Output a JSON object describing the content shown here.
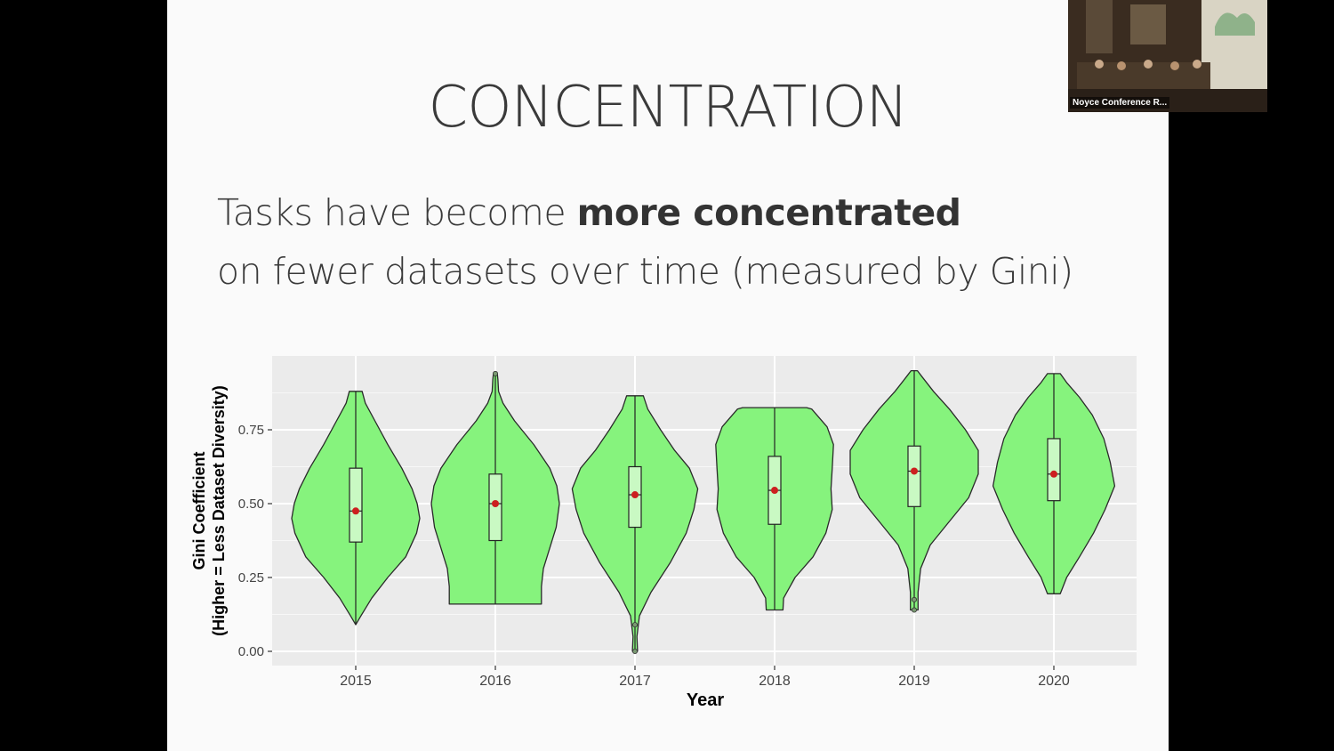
{
  "slide": {
    "title": "CONCENTRATION",
    "subtitle_line1_prefix": "Tasks have become ",
    "subtitle_line1_bold": "more concentrated",
    "subtitle_line2": "on fewer datasets over time (measured by Gini)"
  },
  "video_tile": {
    "label": "Noyce Conference R..."
  },
  "colors": {
    "violin_fill": "#86f37d",
    "box_fill": "#c9f9c3",
    "mean_dot": "#cc1f1f",
    "panel_bg": "#ebebeb"
  },
  "chart_data": {
    "type": "violin",
    "xlabel": "Year",
    "ylabel_line1": "Gini Coefficient",
    "ylabel_line2": "(Higher = Less Dataset Diversity)",
    "ylim": [
      -0.04,
      1.0
    ],
    "yticks": [
      0.0,
      0.25,
      0.5,
      0.75
    ],
    "ytick_labels": [
      "0.00",
      "0.25",
      "0.50",
      "0.75"
    ],
    "grid": true,
    "categories": [
      "2015",
      "2016",
      "2017",
      "2018",
      "2019",
      "2020"
    ],
    "series": [
      {
        "min": 0.09,
        "max": 0.88,
        "q1": 0.37,
        "q3": 0.62,
        "mean": 0.475,
        "outliers": [],
        "density": [
          [
            0.09,
            0.0
          ],
          [
            0.12,
            0.08
          ],
          [
            0.18,
            0.25
          ],
          [
            0.25,
            0.5
          ],
          [
            0.32,
            0.78
          ],
          [
            0.4,
            0.95
          ],
          [
            0.45,
            1.0
          ],
          [
            0.5,
            0.96
          ],
          [
            0.55,
            0.88
          ],
          [
            0.62,
            0.72
          ],
          [
            0.7,
            0.5
          ],
          [
            0.78,
            0.3
          ],
          [
            0.84,
            0.15
          ],
          [
            0.88,
            0.1
          ]
        ]
      },
      {
        "min": 0.16,
        "max": 0.94,
        "q1": 0.375,
        "q3": 0.6,
        "mean": 0.5,
        "outliers": [
          0.94
        ],
        "density": [
          [
            0.16,
            0.72
          ],
          [
            0.22,
            0.72
          ],
          [
            0.28,
            0.75
          ],
          [
            0.35,
            0.85
          ],
          [
            0.42,
            0.95
          ],
          [
            0.5,
            1.0
          ],
          [
            0.56,
            0.96
          ],
          [
            0.62,
            0.85
          ],
          [
            0.7,
            0.6
          ],
          [
            0.78,
            0.3
          ],
          [
            0.84,
            0.12
          ],
          [
            0.88,
            0.05
          ],
          [
            0.92,
            0.04
          ],
          [
            0.94,
            0.03
          ]
        ]
      },
      {
        "min": 0.0,
        "max": 0.865,
        "q1": 0.42,
        "q3": 0.625,
        "mean": 0.53,
        "outliers": [
          0.09,
          0.0
        ],
        "density": [
          [
            0.0,
            0.04
          ],
          [
            0.05,
            0.03
          ],
          [
            0.12,
            0.07
          ],
          [
            0.2,
            0.25
          ],
          [
            0.3,
            0.55
          ],
          [
            0.4,
            0.8
          ],
          [
            0.48,
            0.92
          ],
          [
            0.55,
            0.98
          ],
          [
            0.62,
            0.85
          ],
          [
            0.68,
            0.62
          ],
          [
            0.75,
            0.4
          ],
          [
            0.82,
            0.2
          ],
          [
            0.865,
            0.13
          ]
        ]
      },
      {
        "min": 0.14,
        "max": 0.825,
        "q1": 0.43,
        "q3": 0.66,
        "mean": 0.545,
        "outliers": [],
        "density": [
          [
            0.14,
            0.13
          ],
          [
            0.18,
            0.14
          ],
          [
            0.25,
            0.32
          ],
          [
            0.32,
            0.6
          ],
          [
            0.4,
            0.8
          ],
          [
            0.48,
            0.9
          ],
          [
            0.55,
            0.88
          ],
          [
            0.62,
            0.9
          ],
          [
            0.7,
            0.92
          ],
          [
            0.76,
            0.82
          ],
          [
            0.82,
            0.58
          ],
          [
            0.825,
            0.5
          ]
        ]
      },
      {
        "min": 0.14,
        "max": 0.95,
        "q1": 0.49,
        "q3": 0.695,
        "mean": 0.61,
        "outliers": [
          0.175,
          0.14
        ],
        "density": [
          [
            0.14,
            0.06
          ],
          [
            0.2,
            0.06
          ],
          [
            0.28,
            0.1
          ],
          [
            0.36,
            0.25
          ],
          [
            0.44,
            0.55
          ],
          [
            0.52,
            0.85
          ],
          [
            0.6,
            1.0
          ],
          [
            0.68,
            1.0
          ],
          [
            0.75,
            0.8
          ],
          [
            0.82,
            0.55
          ],
          [
            0.88,
            0.3
          ],
          [
            0.93,
            0.12
          ],
          [
            0.95,
            0.05
          ]
        ]
      },
      {
        "min": 0.195,
        "max": 0.94,
        "q1": 0.51,
        "q3": 0.72,
        "mean": 0.6,
        "outliers": [],
        "density": [
          [
            0.195,
            0.1
          ],
          [
            0.25,
            0.2
          ],
          [
            0.32,
            0.4
          ],
          [
            0.4,
            0.62
          ],
          [
            0.48,
            0.8
          ],
          [
            0.56,
            0.95
          ],
          [
            0.64,
            0.88
          ],
          [
            0.72,
            0.78
          ],
          [
            0.8,
            0.6
          ],
          [
            0.86,
            0.4
          ],
          [
            0.91,
            0.2
          ],
          [
            0.94,
            0.1
          ]
        ]
      }
    ]
  }
}
